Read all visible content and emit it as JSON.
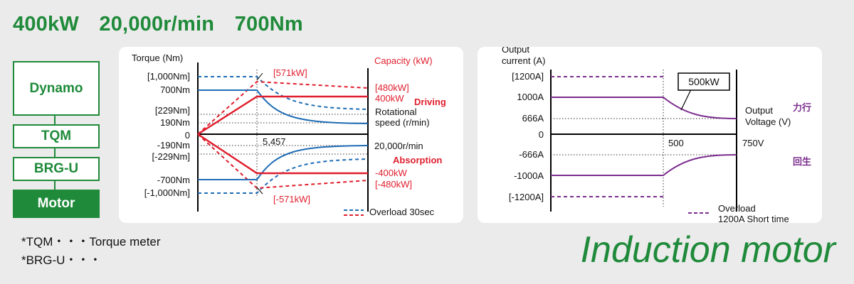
{
  "heading": "400kW  20,000r/min  700Nm",
  "stack": {
    "boxes": [
      "Dynamo",
      "TQM",
      "BRG-U",
      "Motor"
    ]
  },
  "notes": [
    "*TQM・・・Torque meter",
    "*BRG-U・・・"
  ],
  "title": "Induction motor",
  "left_chart": {
    "y_title": "Torque (Nm)",
    "capacity_title": "Capacity (kW)",
    "y_ticks": [
      "[1,000Nm]",
      "700Nm",
      "[229Nm]",
      "190Nm",
      "0",
      "-190Nm",
      "[-229Nm]",
      "-700Nm",
      "[-1,000Nm]"
    ],
    "x_tick": "5,457",
    "x_end": "20,000r/min",
    "peak_top": "[571kW]",
    "peak_bottom": "[-571kW]",
    "cap_top_overload": "[480kW]",
    "cap_top": "400kW",
    "driving": "Driving",
    "rotational_line1": "Rotational",
    "rotational_line2": "speed (r/min)",
    "absorption": "Absorption",
    "cap_bottom": "-400kW",
    "cap_bottom_overload": "[-480kW]",
    "legend": "Overload 30sec",
    "colors": {
      "torque": "#1f6cb4",
      "power": "#e01e2d",
      "overload_torque": "#1f6cb4",
      "overload_power": "#e01e2d"
    }
  },
  "right_chart": {
    "y_title_line1": "Output",
    "y_title_line2": "current (A)",
    "y_ticks": [
      "[1200A]",
      "1000A",
      "666A",
      "0",
      "-666A",
      "-1000A",
      "[-1200A]"
    ],
    "x_tick": "500",
    "x_end": "750V",
    "callout": "500kW",
    "x_title_line1": "Output",
    "x_title_line2": "Voltage (V)",
    "driving_jp": "力行",
    "regen_jp": "回生",
    "legend_line1": "Overload",
    "legend_line2": "1200A Short time",
    "colors": {
      "current": "#7b2d8e"
    }
  }
}
